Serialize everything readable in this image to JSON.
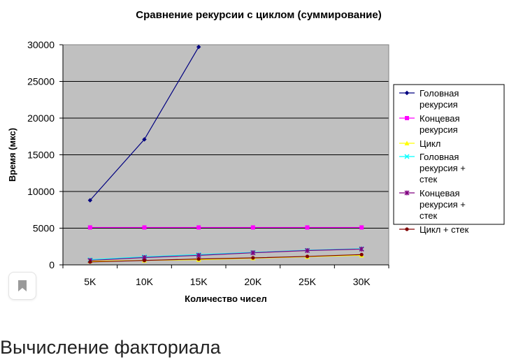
{
  "chart_data": {
    "type": "line",
    "title": "Сравнение рекурсии с циклом (суммирование)",
    "xlabel": "Количество чисел",
    "ylabel": "Время (мкс)",
    "categories": [
      "5K",
      "10K",
      "15K",
      "20K",
      "25K",
      "30K"
    ],
    "ylim": [
      0,
      30000
    ],
    "yticks": [
      "0",
      "5000",
      "10000",
      "15000",
      "20000",
      "25000",
      "30000"
    ],
    "grid": true,
    "legend_position": "right",
    "series": [
      {
        "name": "Головная рекурсия",
        "color": "#000080",
        "marker": "diamond",
        "values": [
          8800,
          17100,
          29700,
          null,
          null,
          null
        ]
      },
      {
        "name": "Концевая рекурсия",
        "color": "#ff00ff",
        "marker": "square",
        "values": [
          5100,
          5100,
          5100,
          5100,
          5100,
          5100
        ]
      },
      {
        "name": "Цикл",
        "color": "#ffff00",
        "marker": "triangle",
        "values": [
          500,
          600,
          700,
          900,
          1100,
          1300
        ]
      },
      {
        "name": "Головная рекурсия + стек",
        "color": "#00ffff",
        "marker": "x",
        "values": [
          700,
          1100,
          1400,
          1700,
          2000,
          2200
        ]
      },
      {
        "name": "Концевая рекурсия + стек",
        "color": "#800080",
        "marker": "star",
        "values": [
          600,
          1000,
          1300,
          1650,
          1950,
          2150
        ]
      },
      {
        "name": "Цикл + стек",
        "color": "#800000",
        "marker": "circle",
        "values": [
          400,
          600,
          800,
          950,
          1150,
          1400
        ]
      }
    ]
  },
  "page": {
    "heading": "Вычисление факториала",
    "bookmark_icon": "bookmark-icon"
  }
}
